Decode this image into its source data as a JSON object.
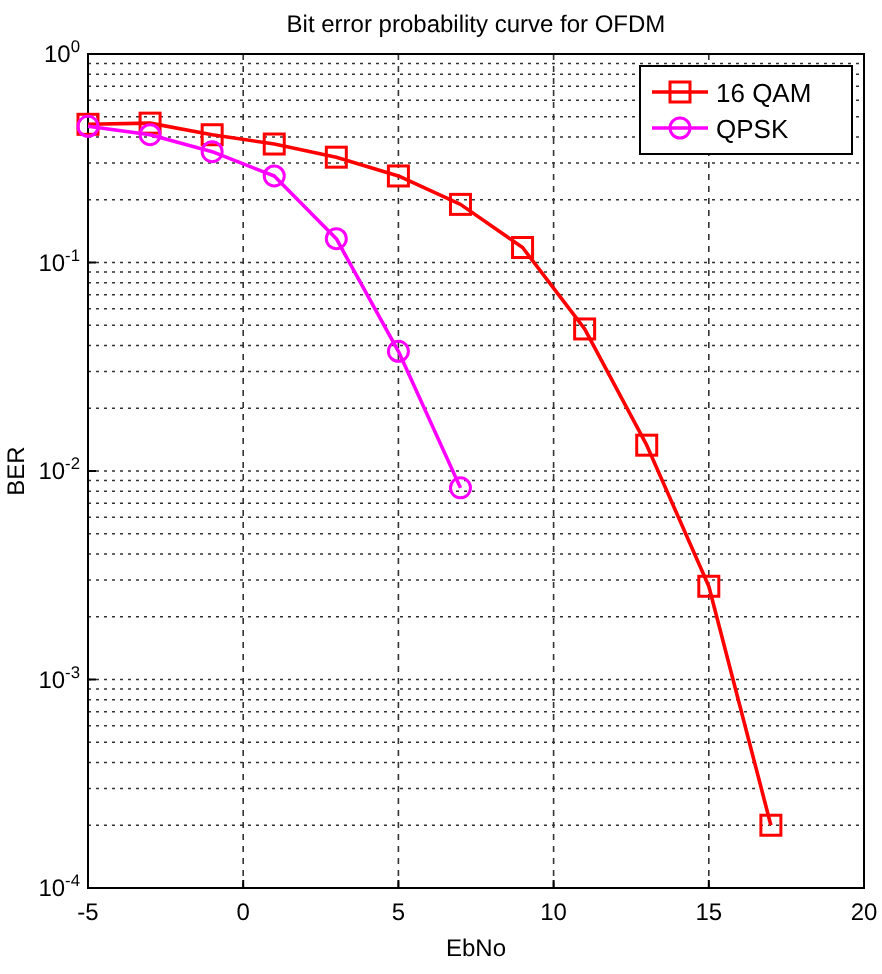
{
  "chart_data": {
    "type": "line",
    "title": "Bit error probability curve for OFDM",
    "xlabel": "EbNo",
    "ylabel": "BER",
    "log": "y",
    "grid": true,
    "legend": "top right",
    "xlim": [
      -5,
      20
    ],
    "xticks": [
      -5,
      0,
      5,
      10,
      15,
      20
    ],
    "ylim": [
      0.0001,
      1
    ],
    "yticks": [
      {
        "value": 0.0001,
        "label": "10$^{-4}$"
      },
      {
        "value": 0.001,
        "label": "10$^{-3}$"
      },
      {
        "value": 0.01,
        "label": "10$^{-2}$"
      },
      {
        "value": 0.1,
        "label": "10$^{-1}$"
      },
      {
        "value": 1,
        "label": "10$^{0}$"
      }
    ],
    "series": [
      {
        "name": "16 QAM",
        "color": "#ff0000",
        "marker": "square",
        "x": [
          -5,
          -3,
          -1,
          1,
          3,
          5,
          7,
          9,
          11,
          13,
          15,
          17
        ],
        "values": [
          0.46,
          0.466,
          0.41,
          0.37,
          0.32,
          0.26,
          0.19,
          0.118,
          0.048,
          0.0133,
          0.0028,
          0.0002
        ]
      },
      {
        "name": "QPSK",
        "color": "#ff00ff",
        "marker": "circle",
        "x": [
          -5,
          -3,
          -1,
          1,
          3,
          5,
          7
        ],
        "values": [
          0.45,
          0.41,
          0.34,
          0.26,
          0.13,
          0.0375,
          0.0083
        ]
      }
    ]
  }
}
